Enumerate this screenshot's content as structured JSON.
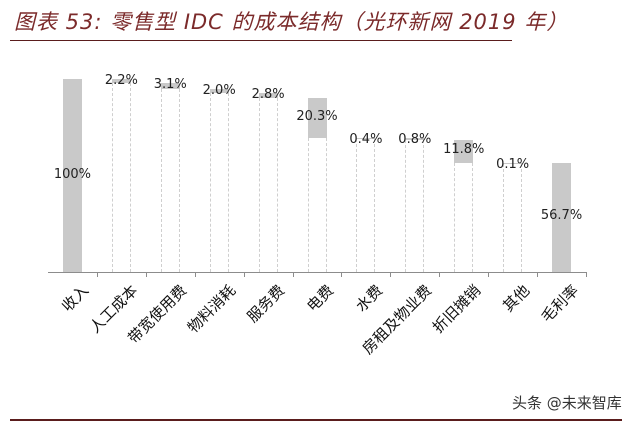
{
  "title": "图表 53: 零售型 IDC 的成本结构（光环新网 2019 年）",
  "watermark": "头条 @未来智库",
  "chart_data": {
    "type": "waterfall",
    "title": "图表 53: 零售型 IDC 的成本结构（光环新网 2019 年）",
    "xlabel": "",
    "ylabel": "",
    "ylim": [
      0,
      100
    ],
    "grid": false,
    "legend": null,
    "bar_color": "#c9c9c9",
    "categories": [
      "收入",
      "人工成本",
      "带宽使用费",
      "物料消耗",
      "服务费",
      "电费",
      "水费",
      "房租及物业费",
      "折旧摊销",
      "其他",
      "毛利率"
    ],
    "values": [
      100,
      2.2,
      3.1,
      2.0,
      2.8,
      20.3,
      0.4,
      0.8,
      11.8,
      0.1,
      56.7
    ],
    "labels": [
      "100%",
      "2.2%",
      "3.1%",
      "2.0%",
      "2.8%",
      "20.3%",
      "0.4%",
      "0.8%",
      "11.8%",
      "0.1%",
      "56.7%"
    ],
    "kinds": [
      "total",
      "decrease",
      "decrease",
      "decrease",
      "decrease",
      "decrease",
      "decrease",
      "decrease",
      "decrease",
      "decrease",
      "total"
    ]
  }
}
